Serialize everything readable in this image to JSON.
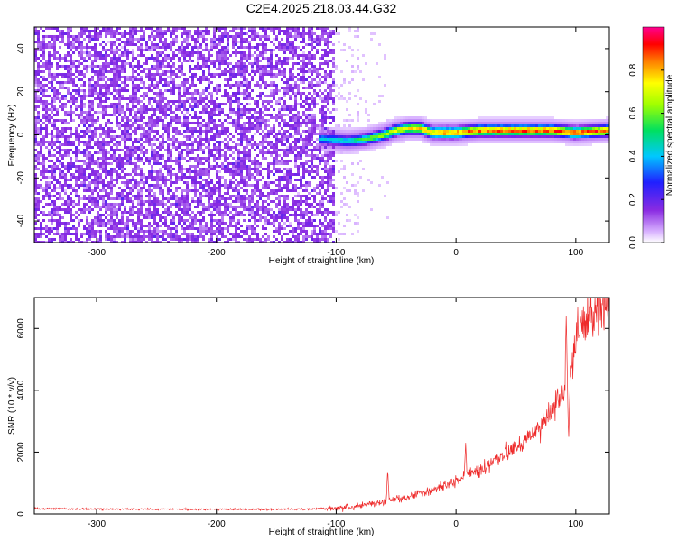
{
  "title": "C2E4.2025.218.03.44.G32",
  "chart_data": [
    {
      "type": "heatmap",
      "xlabel": "Height of straight line (km)",
      "ylabel": "Frequency (Hz)",
      "xlim": [
        -352,
        128
      ],
      "ylim": [
        -50,
        50
      ],
      "xticks": [
        -300,
        -200,
        -100,
        0,
        100
      ],
      "yticks": [
        -40,
        -20,
        0,
        20,
        40
      ],
      "colorbar": {
        "label": "Normalized spectral amplitude",
        "range": [
          0.0,
          1.0
        ],
        "ticks": [
          "0.0",
          "0.2",
          "0.4",
          "0.6",
          "0.8"
        ],
        "colormap": "rainbow (white-violet-blue-cyan-green-yellow-red-magenta)"
      },
      "noise_region_x": [
        -352,
        -100
      ],
      "signal_track": {
        "x": [
          -110,
          -90,
          -75,
          -60,
          -50,
          -40,
          -30,
          -20,
          -10,
          0,
          20,
          50,
          80,
          100,
          128
        ],
        "frequency": [
          -2,
          -3,
          -2,
          0,
          2,
          3,
          3,
          1,
          1,
          1,
          2,
          2,
          2,
          1,
          2
        ],
        "peak_amplitude": [
          0.45,
          0.5,
          0.6,
          0.7,
          0.75,
          0.8,
          0.85,
          0.85,
          0.9,
          0.9,
          0.92,
          0.95,
          0.95,
          0.95,
          0.95
        ]
      }
    },
    {
      "type": "line",
      "xlabel": "Height of straight line (km)",
      "ylabel": "SNR (10 * v/v)",
      "xlim": [
        -352,
        128
      ],
      "ylim": [
        0,
        7000
      ],
      "xticks": [
        -300,
        -200,
        -100,
        0,
        100
      ],
      "yticks": [
        0,
        2000,
        4000,
        6000
      ],
      "series": [
        {
          "color": "#ee2a2a",
          "x": [
            -352,
            -300,
            -250,
            -200,
            -150,
            -120,
            -100,
            -80,
            -60,
            -40,
            -20,
            0,
            20,
            40,
            60,
            80,
            90,
            95,
            100,
            110,
            120,
            128
          ],
          "values": [
            170,
            160,
            155,
            150,
            150,
            160,
            200,
            260,
            400,
            560,
            750,
            1050,
            1450,
            1900,
            2400,
            3300,
            3900,
            4300,
            5800,
            6400,
            6700,
            6900
          ]
        }
      ],
      "spikes": [
        {
          "x": -57,
          "value": 1450
        },
        {
          "x": 8,
          "value": 2300
        },
        {
          "x": 92,
          "value": 6400
        },
        {
          "x": 94,
          "value": 2400
        }
      ]
    }
  ]
}
